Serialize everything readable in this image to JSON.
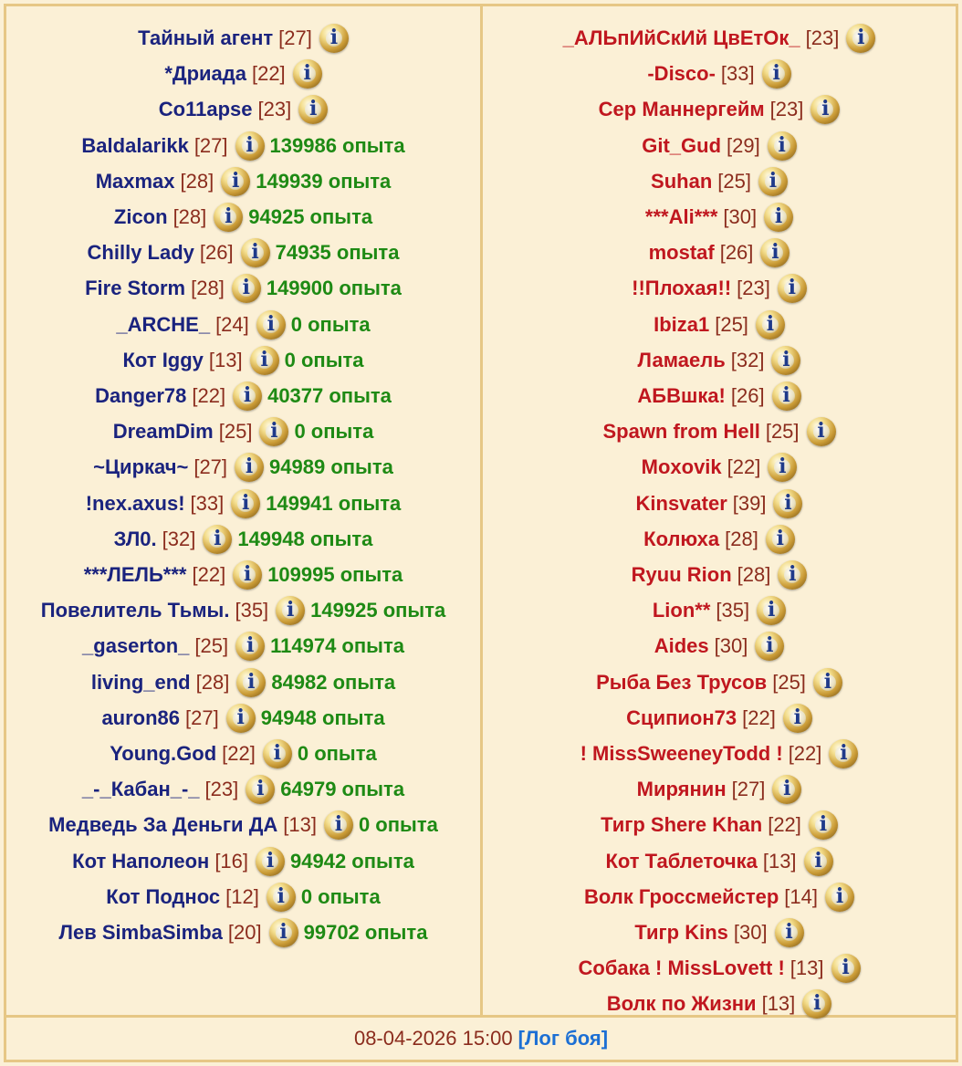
{
  "team_left": [
    {
      "name": "Тайный агент",
      "level": "[27]",
      "exp": ""
    },
    {
      "name": "*Дриада",
      "level": "[22]",
      "exp": ""
    },
    {
      "name": "Co11apse",
      "level": "[23]",
      "exp": ""
    },
    {
      "name": "Baldalarikk",
      "level": "[27]",
      "exp": "139986 опыта"
    },
    {
      "name": "Maxmax",
      "level": "[28]",
      "exp": "149939 опыта"
    },
    {
      "name": "Zicon",
      "level": "[28]",
      "exp": "94925 опыта"
    },
    {
      "name": "Chilly Lady",
      "level": "[26]",
      "exp": "74935 опыта"
    },
    {
      "name": "Fire Storm",
      "level": "[28]",
      "exp": "149900 опыта"
    },
    {
      "name": "_ARCHE_",
      "level": "[24]",
      "exp": "0 опыта"
    },
    {
      "name": "Кот Iggy",
      "level": "[13]",
      "exp": "0 опыта"
    },
    {
      "name": "Danger78",
      "level": "[22]",
      "exp": "40377 опыта"
    },
    {
      "name": "DreamDim",
      "level": "[25]",
      "exp": "0 опыта"
    },
    {
      "name": "~Циркач~",
      "level": "[27]",
      "exp": "94989 опыта"
    },
    {
      "name": "!nex.axus!",
      "level": "[33]",
      "exp": "149941 опыта"
    },
    {
      "name": "ЗЛ0.",
      "level": "[32]",
      "exp": "149948 опыта"
    },
    {
      "name": "***ЛЕЛЬ***",
      "level": "[22]",
      "exp": "109995 опыта"
    },
    {
      "name": "Повелитель Тьмы.",
      "level": "[35]",
      "exp": "149925 опыта"
    },
    {
      "name": "_gaserton_",
      "level": "[25]",
      "exp": "114974 опыта"
    },
    {
      "name": "living_end",
      "level": "[28]",
      "exp": "84982 опыта"
    },
    {
      "name": "auron86",
      "level": "[27]",
      "exp": "94948 опыта"
    },
    {
      "name": "Young.God",
      "level": "[22]",
      "exp": "0 опыта"
    },
    {
      "name": "_-_Кабан_-_",
      "level": "[23]",
      "exp": "64979 опыта"
    },
    {
      "name": "Медведь За Деньги ДА",
      "level": "[13]",
      "exp": "0 опыта"
    },
    {
      "name": "Кот Наполеон",
      "level": "[16]",
      "exp": "94942 опыта"
    },
    {
      "name": "Кот Поднос",
      "level": "[12]",
      "exp": "0 опыта"
    },
    {
      "name": "Лев SimbaSimba",
      "level": "[20]",
      "exp": "99702 опыта"
    }
  ],
  "team_right": [
    {
      "name": "_АЛЬпИйСкИй ЦвЕтОк_",
      "level": "[23]"
    },
    {
      "name": "-Disco-",
      "level": "[33]"
    },
    {
      "name": "Сер Маннергейм",
      "level": "[23]"
    },
    {
      "name": "Git_Gud",
      "level": "[29]"
    },
    {
      "name": "Suhan",
      "level": "[25]"
    },
    {
      "name": "***Ali***",
      "level": "[30]"
    },
    {
      "name": "mostaf",
      "level": "[26]"
    },
    {
      "name": "!!Плохая!!",
      "level": "[23]"
    },
    {
      "name": "Ibiza1",
      "level": "[25]"
    },
    {
      "name": "Ламаель",
      "level": "[32]"
    },
    {
      "name": "АБВшка!",
      "level": "[26]"
    },
    {
      "name": "Spawn from Hell",
      "level": "[25]"
    },
    {
      "name": "Moxovik",
      "level": "[22]"
    },
    {
      "name": "Kinsvater",
      "level": "[39]"
    },
    {
      "name": "Колюха",
      "level": "[28]"
    },
    {
      "name": "Ryuu Rion",
      "level": "[28]"
    },
    {
      "name": "Lion**",
      "level": "[35]"
    },
    {
      "name": "Aides",
      "level": "[30]"
    },
    {
      "name": "Рыба Без Трусов",
      "level": "[25]"
    },
    {
      "name": "Сципион73",
      "level": "[22]"
    },
    {
      "name": "! MissSweeneyTodd !",
      "level": "[22]"
    },
    {
      "name": "Мирянин",
      "level": "[27]"
    },
    {
      "name": "Тигр Shere Khan",
      "level": "[22]"
    },
    {
      "name": "Кот Таблеточка",
      "level": "[13]"
    },
    {
      "name": "Волк Гроссмейстер",
      "level": "[14]"
    },
    {
      "name": "Тигр Kins",
      "level": "[30]"
    },
    {
      "name": "Собака ! MissLovett !",
      "level": "[13]"
    },
    {
      "name": "Волк по Жизни",
      "level": "[13]"
    }
  ],
  "footer": {
    "timestamp": "08-04-2026 15:00",
    "log_link": "[Лог боя]"
  },
  "icons": {
    "player_info": "info-icon"
  },
  "colors": {
    "background": "#fbf0d6",
    "border": "#e6c785",
    "team_left_name": "#1a237e",
    "team_right_name": "#c0171f",
    "level": "#8b2c1d",
    "experience": "#1e8a14",
    "link": "#1c6fd4"
  }
}
